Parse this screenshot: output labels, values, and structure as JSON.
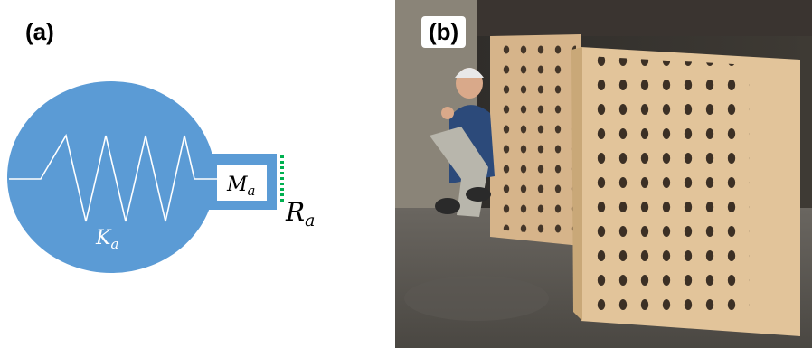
{
  "figure": {
    "panel_a": {
      "label": "(a)",
      "spring_label_main": "K",
      "spring_label_sub": "a",
      "mass_label_main": "M",
      "mass_label_sub": "a",
      "resistance_label_main": "R",
      "resistance_label_sub": "a",
      "colors": {
        "body": "#5b9bd5",
        "spring": "#ffffff",
        "resistance": "#00b050"
      }
    },
    "panel_b": {
      "label": "(b)",
      "photo_subject": "person-kneeling-beside-perforated-wooden-panels"
    }
  }
}
